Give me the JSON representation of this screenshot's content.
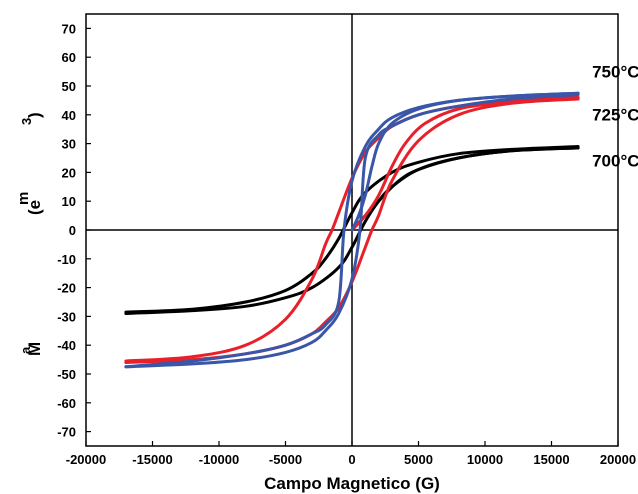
{
  "chart_data": {
    "type": "line",
    "title": "",
    "xlabel": "Campo Magnetico (G)",
    "ylabel_fragments": {
      "m": "m",
      "e": "(e",
      "three": "3",
      "paren": ")",
      "a": "a",
      "M": "M"
    },
    "xlim": [
      -20000,
      20000
    ],
    "ylim": [
      -75,
      75
    ],
    "xticks": [
      -20000,
      -15000,
      -10000,
      -5000,
      0,
      5000,
      10000,
      15000,
      20000
    ],
    "yticks": [
      -70,
      -60,
      -50,
      -40,
      -30,
      -20,
      -10,
      0,
      10,
      20,
      30,
      40,
      50,
      60,
      70
    ],
    "grid": false,
    "series": [
      {
        "name": "700°C",
        "color": "#000000",
        "upper": {
          "x": [
            -17000,
            -12000,
            -8000,
            -5000,
            -3000,
            -2000,
            -1000,
            0,
            1000,
            3000,
            5000,
            8000,
            12000,
            17000
          ],
          "y": [
            -28.5,
            -27.5,
            -25,
            -21,
            -15,
            -10,
            -3,
            6,
            13,
            20,
            23.5,
            26.5,
            28,
            29
          ]
        },
        "lower": {
          "x": [
            -17000,
            -12000,
            -8000,
            -5000,
            -3000,
            -1000,
            0,
            1000,
            2000,
            3000,
            5000,
            8000,
            12000,
            17000
          ],
          "y": [
            -29,
            -28,
            -26.5,
            -23.5,
            -20,
            -13,
            -6,
            3,
            10,
            15,
            21,
            25,
            27.5,
            28.5
          ]
        },
        "virgin": {
          "x": [
            0,
            1000,
            2000,
            3500,
            5000,
            8000,
            12000,
            17000
          ],
          "y": [
            0,
            5,
            10,
            17,
            21,
            25,
            27.5,
            28.5
          ]
        }
      },
      {
        "name": "725°C",
        "color": "#e8202a",
        "upper": {
          "x": [
            -17000,
            -12000,
            -8000,
            -5000,
            -3000,
            -2000,
            -1500,
            -1000,
            0,
            1000,
            2000,
            3000,
            5000,
            8000,
            12000,
            17000
          ],
          "y": [
            -45.5,
            -44,
            -40,
            -31,
            -17,
            -5,
            0,
            6,
            18,
            27,
            32,
            36,
            40,
            43,
            45,
            46
          ]
        },
        "lower": {
          "x": [
            -17000,
            -12000,
            -8000,
            -5000,
            -3000,
            -2000,
            -1000,
            0,
            1000,
            1500,
            2000,
            3000,
            5000,
            8000,
            12000,
            17000
          ],
          "y": [
            -46,
            -45,
            -43,
            -40,
            -36,
            -32,
            -27,
            -18,
            -6,
            0,
            5,
            17,
            31,
            40,
            44,
            45.5
          ]
        },
        "virgin": {
          "x": [
            0,
            1000,
            2000,
            3000,
            4000,
            5500,
            8000,
            12000,
            17000
          ],
          "y": [
            0,
            5,
            12,
            22,
            30,
            37,
            42,
            44.5,
            46
          ]
        }
      },
      {
        "name": "750°C",
        "color": "#3a56a8",
        "upper": {
          "x": [
            -17000,
            -12000,
            -8000,
            -5000,
            -3000,
            -2000,
            -1000,
            -600,
            0,
            1000,
            2000,
            3000,
            5000,
            8000,
            12000,
            17000
          ],
          "y": [
            -47.5,
            -45.5,
            -43,
            -40,
            -36,
            -33,
            -25,
            0,
            17,
            29,
            35,
            39,
            42.5,
            45,
            46.5,
            47.5
          ]
        },
        "lower": {
          "x": [
            -17000,
            -12000,
            -8000,
            -5000,
            -3000,
            -2000,
            -1000,
            0,
            600,
            1000,
            2000,
            3000,
            5000,
            8000,
            12000,
            17000
          ],
          "y": [
            -47.5,
            -46.5,
            -45,
            -42.5,
            -39,
            -35,
            -29,
            -17,
            0,
            25,
            33,
            36,
            40,
            43,
            45.5,
            47
          ]
        },
        "virgin": {
          "x": [
            0,
            500,
            1000,
            1500,
            2000,
            3000,
            5000,
            8000,
            12000,
            17000
          ],
          "y": [
            0,
            5,
            12,
            22,
            30,
            37,
            42,
            45,
            46.5,
            47.5
          ]
        }
      }
    ],
    "annotations": [
      {
        "text": "750°C",
        "x": 17000,
        "y": 53
      },
      {
        "text": "725°C",
        "x": 17000,
        "y": 38
      },
      {
        "text": "700°C",
        "x": 17000,
        "y": 22
      }
    ]
  }
}
